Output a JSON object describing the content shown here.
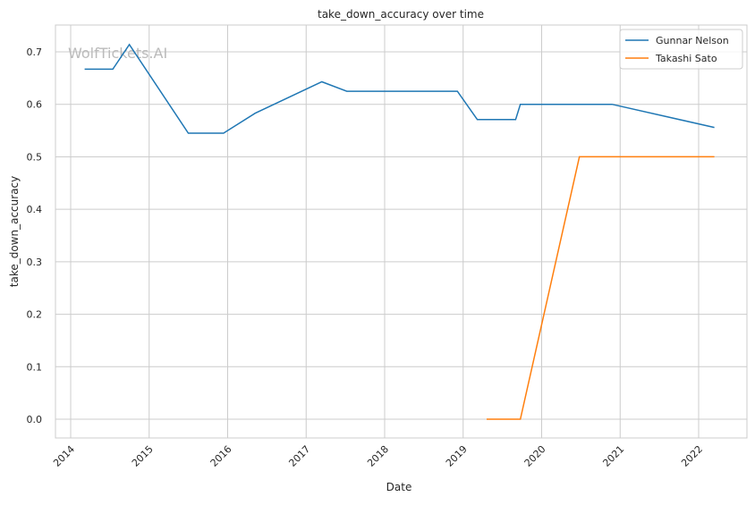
{
  "chart_data": {
    "type": "line",
    "title": "take_down_accuracy over time",
    "xlabel": "Date",
    "ylabel": "take_down_accuracy",
    "watermark": "WolfTickets.AI",
    "xlim": [
      "2013-10-20",
      "2022-07-20"
    ],
    "ylim": [
      -0.036,
      0.75
    ],
    "x_ticks": [
      "2014",
      "2015",
      "2016",
      "2017",
      "2018",
      "2019",
      "2020",
      "2021",
      "2022"
    ],
    "y_ticks": [
      "0.0",
      "0.1",
      "0.2",
      "0.3",
      "0.4",
      "0.5",
      "0.6",
      "0.7"
    ],
    "grid": true,
    "legend_position": "top-right",
    "series": [
      {
        "name": "Gunnar Nelson",
        "color": "#1f77b4",
        "x": [
          "2014-03-07",
          "2014-07-16",
          "2014-10-01",
          "2015-07-02",
          "2015-12-13",
          "2016-05-08",
          "2017-03-15",
          "2017-07-09",
          "2018-12-05",
          "2019-03-08",
          "2019-09-02",
          "2019-09-24",
          "2020-11-24",
          "2022-03-15"
        ],
        "y": [
          0.667,
          0.667,
          0.714,
          0.545,
          0.545,
          0.583,
          0.643,
          0.625,
          0.625,
          0.571,
          0.571,
          0.6,
          0.6,
          0.556
        ]
      },
      {
        "name": "Takashi Sato",
        "color": "#ff7f0e",
        "x": [
          "2019-04-20",
          "2019-09-24",
          "2020-06-25",
          "2022-03-15"
        ],
        "y": [
          0.0,
          0.0,
          0.5,
          0.5
        ]
      }
    ]
  }
}
